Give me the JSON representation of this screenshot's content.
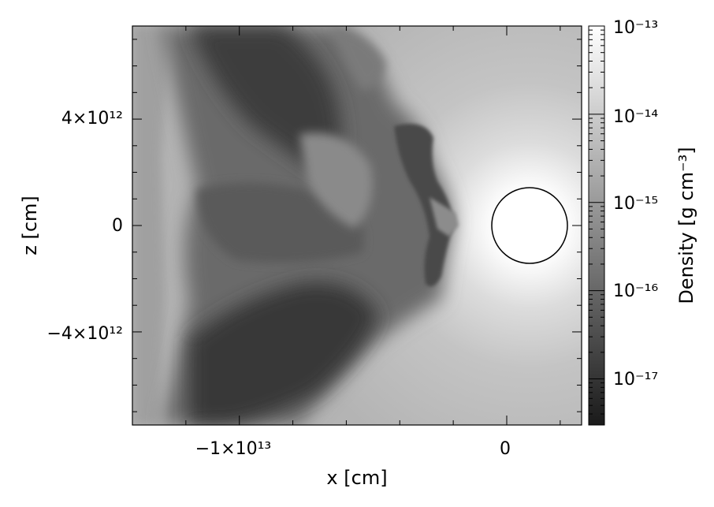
{
  "chart_data": {
    "type": "heatmap",
    "title": "",
    "xlabel": "x [cm]",
    "ylabel": "z [cm]",
    "colorbar_label": "Density [g cm⁻³]",
    "colorbar_scale": "log",
    "colorbar_range": [
      3e-18,
      1e-13
    ],
    "colormap": [
      "#1a1a1a",
      "#ffffff"
    ],
    "x_ticks": [
      {
        "value": -10000000000000.0,
        "label": "−1×10¹³"
      },
      {
        "value": 0,
        "label": "0"
      }
    ],
    "y_ticks": [
      {
        "value": 4000000000000.0,
        "label": "4×10¹²"
      },
      {
        "value": 0,
        "label": "0"
      },
      {
        "value": -4000000000000.0,
        "label": "−4×10¹²"
      }
    ],
    "colorbar_ticks": [
      {
        "value": 1e-13,
        "label": "10⁻¹³"
      },
      {
        "value": 1e-14,
        "label": "10⁻¹⁴"
      },
      {
        "value": 1e-15,
        "label": "10⁻¹⁵"
      },
      {
        "value": 1e-16,
        "label": "10⁻¹⁶"
      },
      {
        "value": 1e-17,
        "label": "10⁻¹⁷"
      }
    ],
    "xlim": [
      -14000000000000.0,
      2800000000000.0
    ],
    "ylim": [
      -7500000000000.0,
      7500000000000.0
    ],
    "circle": {
      "cx": 800000000000.0,
      "cz": 0,
      "r": 1380000000000.0
    }
  }
}
